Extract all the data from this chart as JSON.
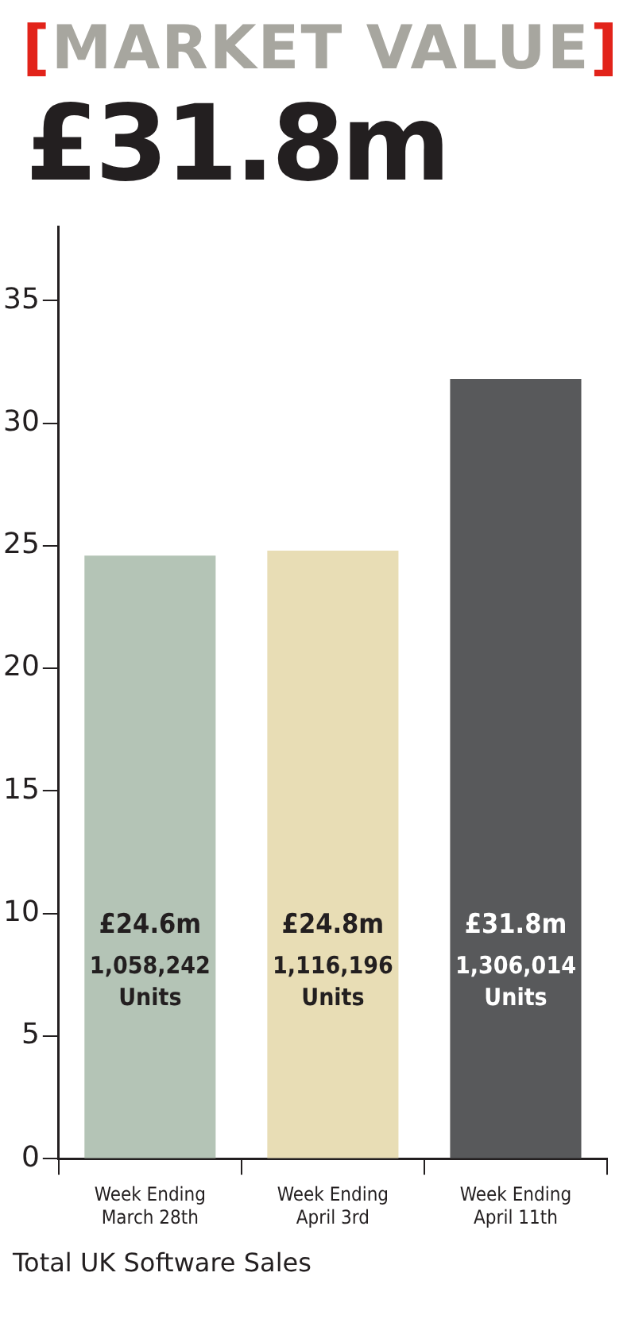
{
  "chart_data": {
    "type": "bar",
    "title": "[MARKET VALUE]",
    "subtitle": "£31.8m",
    "categories": [
      "Week Ending\nMarch 28th",
      "Week Ending\nApril 3rd",
      "Week Ending\nApril 11th"
    ],
    "values": [
      24.6,
      24.8,
      31.8
    ],
    "colors": [
      "#b4c4b6",
      "#e8ddb5",
      "#58595b"
    ],
    "value_labels": [
      "£24.6m",
      "£24.8m",
      "£31.8m"
    ],
    "ylim": [
      0,
      38
    ],
    "yticks": [
      0,
      5,
      10,
      15,
      20,
      25,
      30,
      35
    ],
    "grid": false,
    "legend": false,
    "annotations": [
      "Total UK Software Sales",
      "1,058,242\nUnits",
      "1,116,196\nUnits",
      "1,306,014\nUnits"
    ]
  }
}
